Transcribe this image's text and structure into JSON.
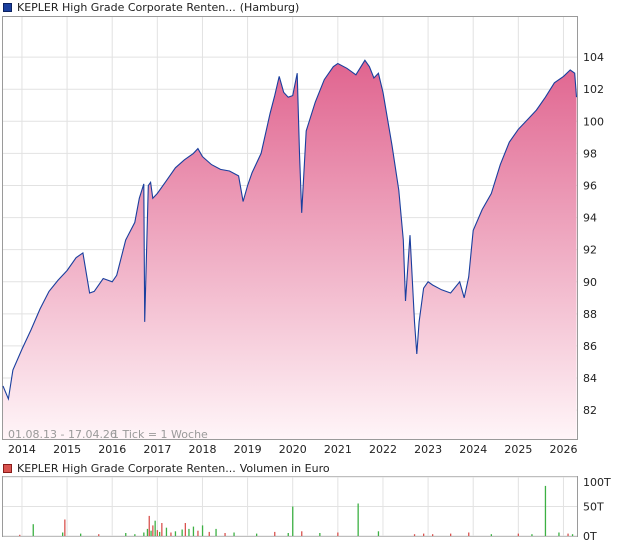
{
  "price_panel": {
    "legend_name": "KEPLER High Grade Corporate Renten...",
    "legend_exchange": "(Hamburg)",
    "period_text": "01.08.13 - 17.04.26",
    "tick_text": "1 Tick = 1 Woche",
    "colors": {
      "line": "#1a3f9e",
      "fill_top": "#e0648f",
      "fill_bottom": "#fff5f8"
    }
  },
  "volume_panel": {
    "legend_name": "KEPLER High Grade Corporate Renten...",
    "legend_unit": "Volumen in Euro",
    "colors": {
      "up": "#3cb043",
      "down": "#d9534f"
    }
  },
  "chart_data": [
    {
      "type": "area",
      "x_ticks": [
        "2014",
        "2015",
        "2016",
        "2017",
        "2018",
        "2019",
        "2020",
        "2021",
        "2022",
        "2023",
        "2024",
        "2025",
        "2026"
      ],
      "ylim": [
        80.2,
        106.5
      ],
      "y_ticks": [
        82,
        84,
        86,
        88,
        90,
        92,
        94,
        96,
        98,
        100,
        102,
        104
      ],
      "grid": true,
      "series": [
        {
          "x": [
            2013.58,
            2013.7,
            2013.8,
            2014.0,
            2014.2,
            2014.4,
            2014.6,
            2014.8,
            2015.0,
            2015.2,
            2015.35,
            2015.5,
            2015.6,
            2015.8,
            2016.0,
            2016.1,
            2016.3,
            2016.5,
            2016.6,
            2016.7,
            2016.72,
            2016.8,
            2016.85,
            2016.9,
            2017.0,
            2017.2,
            2017.4,
            2017.6,
            2017.8,
            2017.9,
            2018.0,
            2018.2,
            2018.4,
            2018.6,
            2018.8,
            2018.9,
            2019.0,
            2019.1,
            2019.3,
            2019.5,
            2019.6,
            2019.7,
            2019.8,
            2019.9,
            2020.0,
            2020.1,
            2020.15,
            2020.2,
            2020.3,
            2020.5,
            2020.7,
            2020.9,
            2021.0,
            2021.2,
            2021.4,
            2021.6,
            2021.7,
            2021.8,
            2021.9,
            2022.0,
            2022.2,
            2022.35,
            2022.45,
            2022.5,
            2022.6,
            2022.7,
            2022.75,
            2022.8,
            2022.9,
            2023.0,
            2023.1,
            2023.3,
            2023.5,
            2023.7,
            2023.8,
            2023.9,
            2024.0,
            2024.2,
            2024.4,
            2024.6,
            2024.8,
            2025.0,
            2025.2,
            2025.4,
            2025.6,
            2025.8,
            2026.0,
            2026.15,
            2026.25,
            2026.29
          ],
          "values": [
            83.5,
            82.7,
            84.5,
            85.8,
            87.0,
            88.3,
            89.4,
            90.1,
            90.7,
            91.5,
            91.8,
            89.3,
            89.4,
            90.2,
            90.0,
            90.4,
            92.6,
            93.7,
            95.2,
            96.1,
            87.5,
            96.0,
            96.2,
            95.2,
            95.5,
            96.3,
            97.1,
            97.6,
            98.0,
            98.3,
            97.8,
            97.3,
            97.0,
            96.9,
            96.6,
            95.0,
            96.0,
            96.8,
            98.0,
            100.5,
            101.6,
            102.8,
            101.8,
            101.5,
            101.6,
            103.0,
            98.0,
            94.3,
            99.4,
            101.2,
            102.6,
            103.4,
            103.6,
            103.3,
            102.9,
            103.8,
            103.4,
            102.7,
            103.0,
            101.8,
            98.5,
            95.7,
            92.6,
            88.8,
            92.9,
            87.5,
            85.5,
            87.5,
            89.6,
            90.0,
            89.8,
            89.5,
            89.3,
            90.0,
            89.0,
            90.3,
            93.2,
            94.5,
            95.5,
            97.3,
            98.7,
            99.5,
            100.1,
            100.7,
            101.5,
            102.4,
            102.8,
            103.2,
            103.0,
            101.5
          ]
        }
      ]
    },
    {
      "type": "bar",
      "ylim": [
        0,
        100
      ],
      "y_ticks": [
        "0T",
        "50T",
        "100T"
      ],
      "bars": [
        {
          "x": 2013.95,
          "value": 2,
          "dir": "down"
        },
        {
          "x": 2014.25,
          "value": 20,
          "dir": "up"
        },
        {
          "x": 2014.9,
          "value": 6,
          "dir": "up"
        },
        {
          "x": 2014.95,
          "value": 28,
          "dir": "down"
        },
        {
          "x": 2015.3,
          "value": 4,
          "dir": "up"
        },
        {
          "x": 2015.7,
          "value": 3,
          "dir": "down"
        },
        {
          "x": 2016.3,
          "value": 5,
          "dir": "up"
        },
        {
          "x": 2016.5,
          "value": 3,
          "dir": "up"
        },
        {
          "x": 2016.7,
          "value": 6,
          "dir": "up"
        },
        {
          "x": 2016.78,
          "value": 12,
          "dir": "up"
        },
        {
          "x": 2016.82,
          "value": 34,
          "dir": "down"
        },
        {
          "x": 2016.86,
          "value": 9,
          "dir": "up"
        },
        {
          "x": 2016.9,
          "value": 18,
          "dir": "down"
        },
        {
          "x": 2016.95,
          "value": 26,
          "dir": "up"
        },
        {
          "x": 2017.0,
          "value": 10,
          "dir": "down"
        },
        {
          "x": 2017.05,
          "value": 7,
          "dir": "up"
        },
        {
          "x": 2017.1,
          "value": 22,
          "dir": "down"
        },
        {
          "x": 2017.2,
          "value": 14,
          "dir": "up"
        },
        {
          "x": 2017.3,
          "value": 6,
          "dir": "down"
        },
        {
          "x": 2017.4,
          "value": 8,
          "dir": "up"
        },
        {
          "x": 2017.55,
          "value": 11,
          "dir": "up"
        },
        {
          "x": 2017.62,
          "value": 22,
          "dir": "down"
        },
        {
          "x": 2017.7,
          "value": 12,
          "dir": "up"
        },
        {
          "x": 2017.8,
          "value": 16,
          "dir": "up"
        },
        {
          "x": 2017.9,
          "value": 9,
          "dir": "down"
        },
        {
          "x": 2018.0,
          "value": 18,
          "dir": "up"
        },
        {
          "x": 2018.15,
          "value": 7,
          "dir": "down"
        },
        {
          "x": 2018.3,
          "value": 12,
          "dir": "up"
        },
        {
          "x": 2018.5,
          "value": 5,
          "dir": "down"
        },
        {
          "x": 2018.7,
          "value": 6,
          "dir": "up"
        },
        {
          "x": 2019.2,
          "value": 4,
          "dir": "up"
        },
        {
          "x": 2019.6,
          "value": 7,
          "dir": "down"
        },
        {
          "x": 2019.9,
          "value": 5,
          "dir": "up"
        },
        {
          "x": 2020.0,
          "value": 50,
          "dir": "up"
        },
        {
          "x": 2020.2,
          "value": 8,
          "dir": "down"
        },
        {
          "x": 2020.6,
          "value": 5,
          "dir": "up"
        },
        {
          "x": 2021.0,
          "value": 6,
          "dir": "down"
        },
        {
          "x": 2021.45,
          "value": 55,
          "dir": "up"
        },
        {
          "x": 2021.9,
          "value": 8,
          "dir": "up"
        },
        {
          "x": 2022.7,
          "value": 3,
          "dir": "down"
        },
        {
          "x": 2022.9,
          "value": 4,
          "dir": "down"
        },
        {
          "x": 2023.1,
          "value": 3,
          "dir": "down"
        },
        {
          "x": 2023.5,
          "value": 4,
          "dir": "down"
        },
        {
          "x": 2023.9,
          "value": 6,
          "dir": "down"
        },
        {
          "x": 2024.4,
          "value": 3,
          "dir": "up"
        },
        {
          "x": 2025.0,
          "value": 4,
          "dir": "down"
        },
        {
          "x": 2025.3,
          "value": 3,
          "dir": "up"
        },
        {
          "x": 2025.6,
          "value": 85,
          "dir": "up"
        },
        {
          "x": 2025.9,
          "value": 6,
          "dir": "up"
        },
        {
          "x": 2026.1,
          "value": 4,
          "dir": "down"
        },
        {
          "x": 2026.2,
          "value": 3,
          "dir": "up"
        }
      ]
    }
  ]
}
